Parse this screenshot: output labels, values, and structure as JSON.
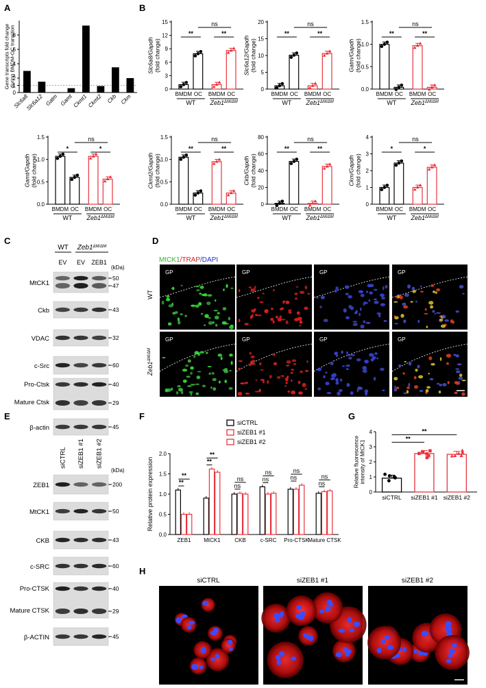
{
  "panels": {
    "A": "A",
    "B": "B",
    "C": "C",
    "D": "D",
    "E": "E",
    "F": "F",
    "G": "G",
    "H": "H"
  },
  "chart_data": [
    {
      "id": "A",
      "type": "bar",
      "ylabel": "Gene transcripts fold change during BMDM-OC transition",
      "categories": [
        "Slc6a8",
        "Slc6a12",
        "Gatm",
        "Gamt",
        "Ckmt1",
        "Ckmt2",
        "Ckb",
        "Ckm"
      ],
      "values": [
        3.0,
        1.5,
        0.0,
        0.6,
        9.3,
        0.9,
        3.5,
        2.0
      ],
      "ylim": [
        0,
        10
      ],
      "yticks": [
        0,
        1,
        2,
        4,
        6,
        8
      ],
      "color": "#000000"
    },
    {
      "id": "B1",
      "type": "bar",
      "ylabel": "Slc6a8/Gapdh (fold change)",
      "ylim": [
        0,
        15
      ],
      "yticks": [
        0,
        3,
        6,
        9,
        12,
        15
      ],
      "categories": [
        "BMDM",
        "OC",
        "BMDM",
        "OC"
      ],
      "values": [
        1.0,
        7.9,
        1.0,
        8.6
      ],
      "sig_inner": [
        "**",
        "**"
      ],
      "sig_outer": "ns"
    },
    {
      "id": "B2",
      "type": "bar",
      "ylabel": "Slc6a12/Gapdh (fold change)",
      "ylim": [
        0,
        20
      ],
      "yticks": [
        0,
        5,
        10,
        15,
        20
      ],
      "categories": [
        "BMDM",
        "OC",
        "BMDM",
        "OC"
      ],
      "values": [
        1.0,
        10.1,
        1.0,
        10.6
      ],
      "sig_inner": [
        "**",
        "**"
      ],
      "sig_outer": "ns"
    },
    {
      "id": "B3",
      "type": "bar",
      "ylabel": "Gatm/Gapdh (fold change)",
      "ylim": [
        0,
        1.5
      ],
      "yticks": [
        0.0,
        0.5,
        1.0,
        1.5
      ],
      "categories": [
        "BMDM",
        "OC",
        "BMDM",
        "OC"
      ],
      "values": [
        1.0,
        0.04,
        0.97,
        0.04
      ],
      "sig_inner": [
        "**",
        "**"
      ],
      "sig_outer": "ns"
    },
    {
      "id": "B4",
      "type": "bar",
      "ylabel": "Gamt/Gapdh (fold change)",
      "ylim": [
        0,
        1.5
      ],
      "yticks": [
        0.0,
        0.5,
        1.0,
        1.5
      ],
      "categories": [
        "BMDM",
        "OC",
        "BMDM",
        "OC"
      ],
      "values": [
        1.07,
        0.6,
        1.07,
        0.56
      ],
      "sig_inner": [
        "*",
        "*"
      ],
      "sig_outer": "ns"
    },
    {
      "id": "B5",
      "type": "bar",
      "ylabel": "Ckmt2/Gapdh (fold change)",
      "ylim": [
        0,
        1.5
      ],
      "yticks": [
        0.0,
        0.5,
        1.0,
        1.5
      ],
      "categories": [
        "BMDM",
        "OC",
        "BMDM",
        "OC"
      ],
      "values": [
        1.05,
        0.25,
        0.95,
        0.25
      ],
      "sig_inner": [
        "**",
        "**"
      ],
      "sig_outer": "ns"
    },
    {
      "id": "B6",
      "type": "bar",
      "ylabel": "Ckb/Gapdh (fold change)",
      "ylim": [
        0,
        80
      ],
      "yticks": [
        0,
        20,
        40,
        60,
        80
      ],
      "categories": [
        "BMDM",
        "OC",
        "BMDM",
        "OC"
      ],
      "values": [
        1.0,
        51.0,
        1.0,
        45.0
      ],
      "sig_inner": [
        "**",
        "**"
      ],
      "sig_outer": "ns"
    },
    {
      "id": "B7",
      "type": "bar",
      "ylabel": "Ckm/Gapdh (fold change)",
      "ylim": [
        0,
        4
      ],
      "yticks": [
        0,
        1,
        2,
        3,
        4
      ],
      "categories": [
        "BMDM",
        "OC",
        "BMDM",
        "OC"
      ],
      "values": [
        1.0,
        2.45,
        1.0,
        2.2
      ],
      "sig_inner": [
        "*",
        "*"
      ],
      "sig_outer": "ns"
    },
    {
      "id": "F",
      "type": "bar",
      "ylabel": "Relative protein expression",
      "ylim": [
        0,
        2.0
      ],
      "yticks": [
        0.0,
        0.5,
        1.0,
        1.5,
        2.0
      ],
      "categories": [
        "ZEB1",
        "MtCK1",
        "CKB",
        "c-SRC",
        "Pro-CTSK",
        "Mature CTSK"
      ],
      "series": [
        {
          "name": "siCTRL",
          "values": [
            1.1,
            0.9,
            1.0,
            1.18,
            1.12,
            1.02
          ],
          "color": "#000000"
        },
        {
          "name": "siZEB1 #1",
          "values": [
            0.5,
            1.62,
            1.02,
            1.0,
            1.12,
            1.06
          ],
          "color": "#e8323c"
        },
        {
          "name": "siZEB1 #2",
          "values": [
            0.5,
            1.54,
            1.0,
            1.02,
            1.22,
            1.08
          ],
          "color": "#e8323c"
        }
      ],
      "sig": [
        "**",
        "**",
        "ns",
        "ns",
        "ns",
        "ns"
      ]
    },
    {
      "id": "G",
      "type": "bar",
      "ylabel": "Relative fluorescence intensity of MtCK1",
      "ylim": [
        0,
        4
      ],
      "yticks": [
        0,
        1,
        2,
        3,
        4
      ],
      "categories": [
        "siCTRL",
        "siZEB1 #1",
        "siZEB1 #2"
      ],
      "values": [
        0.92,
        2.55,
        2.5
      ],
      "sig": [
        "**",
        "**"
      ]
    }
  ],
  "labels": {
    "wt": "WT",
    "zeb1": "Zeb1",
    "zeb1_sup": "ΔM/ΔM",
    "bmdm": "BMDM",
    "oc": "OC",
    "ns": "ns",
    "kda": "(kDa)",
    "gp": "GP"
  },
  "panel_c": {
    "wt": "WT",
    "zeb1": "Zeb1",
    "lanes": [
      "EV",
      "EV",
      "ZEB1"
    ],
    "blots": [
      {
        "label": "MtCK1",
        "markers": [
          "50",
          "47"
        ]
      },
      {
        "label": "Ckb",
        "markers": [
          "43"
        ]
      },
      {
        "label": "VDAC",
        "markers": [
          "32"
        ]
      },
      {
        "label": "c-Src",
        "markers": [
          "60"
        ]
      },
      {
        "label": "Pro-Ctsk",
        "label2": "Mature Ctsk",
        "markers": [
          "40",
          "29"
        ]
      },
      {
        "label": "β-actin",
        "markers": [
          "45"
        ]
      }
    ]
  },
  "panel_d": {
    "stain_mtck1": "MtCK1",
    "stain_trap": "/TRAP",
    "stain_dapi": "/DAPI",
    "row1": "WT",
    "row2": "Zeb1"
  },
  "panel_e": {
    "lanes": [
      "siCTRL",
      "siZEB1 #1",
      "siZEB1 #2"
    ],
    "blots": [
      {
        "label": "ZEB1",
        "markers": [
          "200"
        ]
      },
      {
        "label": "MtCK1",
        "markers": [
          "50"
        ]
      },
      {
        "label": "CKB",
        "markers": [
          "43"
        ]
      },
      {
        "label": "c-SRC",
        "markers": [
          "60"
        ]
      },
      {
        "label": "Pro-CTSK",
        "label2": "Mature CTSK",
        "markers": [
          "40",
          "29"
        ]
      },
      {
        "label": "β-ACTIN",
        "markers": [
          "45"
        ]
      }
    ]
  },
  "panel_h": {
    "titles": [
      "siCTRL",
      "siZEB1 #1",
      "siZEB1 #2"
    ]
  }
}
